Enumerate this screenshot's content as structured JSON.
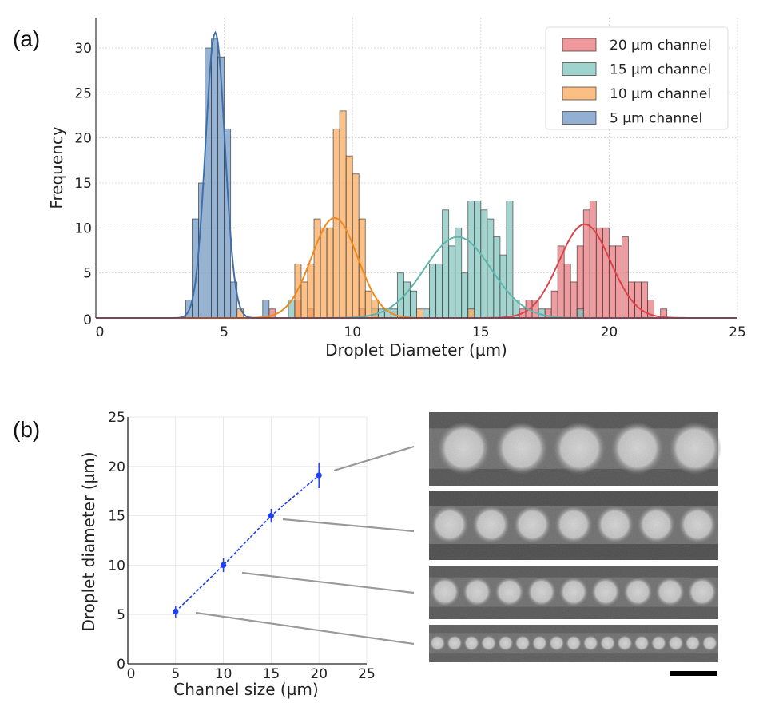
{
  "panels": {
    "a_label": "(a)",
    "b_label": "(b)"
  },
  "chart_data": [
    {
      "id": "histogram",
      "type": "bar",
      "subtype": "overlaid-histogram-with-gaussian-fits",
      "title": "",
      "xlabel": "Droplet Diameter (µm)",
      "ylabel": "Frequency",
      "xlim": [
        0,
        25
      ],
      "ylim": [
        0,
        33
      ],
      "xticks": [
        "0",
        "5",
        "10",
        "15",
        "20",
        "25"
      ],
      "yticks": [
        "0",
        "5",
        "10",
        "15",
        "20",
        "25",
        "30"
      ],
      "grid": true,
      "legend_position": "top-right",
      "bin_width": 0.25,
      "series": [
        {
          "name": "20 µm channel",
          "color": "#e8767a",
          "line_color": "#d9454b",
          "fit": {
            "mean": 19.05,
            "sigma": 1.0,
            "peak": 10.4
          },
          "bins": [
            [
              6.75,
              1
            ],
            [
              7.75,
              2
            ],
            [
              8.25,
              1
            ],
            [
              10.25,
              1
            ],
            [
              16.5,
              1
            ],
            [
              16.75,
              2
            ],
            [
              17.0,
              2
            ],
            [
              17.5,
              1
            ],
            [
              17.75,
              3
            ],
            [
              18.0,
              8
            ],
            [
              18.25,
              6
            ],
            [
              18.5,
              4
            ],
            [
              18.75,
              8
            ],
            [
              19.0,
              12
            ],
            [
              19.25,
              13
            ],
            [
              19.5,
              10
            ],
            [
              19.75,
              10
            ],
            [
              20.0,
              8
            ],
            [
              20.25,
              8
            ],
            [
              20.5,
              9
            ],
            [
              20.75,
              4
            ],
            [
              21.0,
              4
            ],
            [
              21.25,
              4
            ],
            [
              21.5,
              2
            ],
            [
              22.0,
              1
            ]
          ]
        },
        {
          "name": "15 µm channel",
          "color": "#7fc4bd",
          "line_color": "#5fb5ad",
          "fit": {
            "mean": 14.1,
            "sigma": 1.3,
            "peak": 9.0
          },
          "bins": [
            [
              7.5,
              2
            ],
            [
              10.75,
              1
            ],
            [
              11.0,
              1
            ],
            [
              11.25,
              1
            ],
            [
              11.5,
              1
            ],
            [
              11.75,
              5
            ],
            [
              12.0,
              4
            ],
            [
              12.25,
              3
            ],
            [
              12.75,
              1
            ],
            [
              13.0,
              6
            ],
            [
              13.25,
              6
            ],
            [
              13.5,
              12
            ],
            [
              13.75,
              8
            ],
            [
              14.0,
              10
            ],
            [
              14.25,
              5
            ],
            [
              14.5,
              13
            ],
            [
              14.75,
              13
            ],
            [
              15.0,
              12
            ],
            [
              15.25,
              11
            ],
            [
              15.5,
              9
            ],
            [
              15.75,
              7
            ],
            [
              16.0,
              13
            ],
            [
              16.25,
              2
            ],
            [
              17.25,
              1
            ],
            [
              18.75,
              1
            ]
          ]
        },
        {
          "name": "10 µm channel",
          "color": "#f9a95a",
          "line_color": "#f08a1e",
          "fit": {
            "mean": 9.3,
            "sigma": 0.9,
            "peak": 11.1
          },
          "bins": [
            [
              5.5,
              1
            ],
            [
              7.75,
              6
            ],
            [
              8.0,
              4
            ],
            [
              8.25,
              6
            ],
            [
              8.5,
              11
            ],
            [
              8.75,
              10
            ],
            [
              9.0,
              10
            ],
            [
              9.25,
              21
            ],
            [
              9.5,
              23
            ],
            [
              9.75,
              18
            ],
            [
              10.0,
              16
            ],
            [
              10.25,
              11
            ],
            [
              10.5,
              3
            ],
            [
              10.75,
              2
            ],
            [
              12.5,
              1
            ],
            [
              14.5,
              1
            ]
          ]
        },
        {
          "name": "5 µm channel",
          "color": "#6f95c4",
          "line_color": "#3f6fa9",
          "fit": {
            "mean": 4.65,
            "sigma": 0.38,
            "peak": 31.7
          },
          "bins": [
            [
              3.5,
              2
            ],
            [
              3.75,
              11
            ],
            [
              4.0,
              15
            ],
            [
              4.25,
              30
            ],
            [
              4.5,
              31
            ],
            [
              4.75,
              29
            ],
            [
              5.0,
              21
            ],
            [
              5.25,
              4
            ],
            [
              6.5,
              2
            ]
          ]
        }
      ]
    },
    {
      "id": "size-scaling",
      "type": "scatter",
      "subtype": "errorbar-with-dashed-line",
      "title": "",
      "xlabel": "Channel size (µm)",
      "ylabel": "Droplet diameter (µm)",
      "xlim": [
        0,
        25
      ],
      "ylim": [
        0,
        25
      ],
      "xticks": [
        "0",
        "5",
        "10",
        "15",
        "20",
        "25"
      ],
      "yticks": [
        "0",
        "5",
        "10",
        "15",
        "20",
        "25"
      ],
      "grid": true,
      "color": "#1f3ff0",
      "x": [
        5,
        10,
        15,
        20
      ],
      "y": [
        5.3,
        10.0,
        15.0,
        19.1
      ],
      "yerr": [
        0.6,
        0.7,
        0.7,
        1.3
      ]
    }
  ],
  "micrographs": {
    "rows": [
      {
        "channel": "20 µm",
        "droplet_count": 5
      },
      {
        "channel": "15 µm",
        "droplet_count": 7
      },
      {
        "channel": "10 µm",
        "droplet_count": 9
      },
      {
        "channel": "5 µm",
        "droplet_count": 17
      }
    ],
    "scale_bar": true
  }
}
